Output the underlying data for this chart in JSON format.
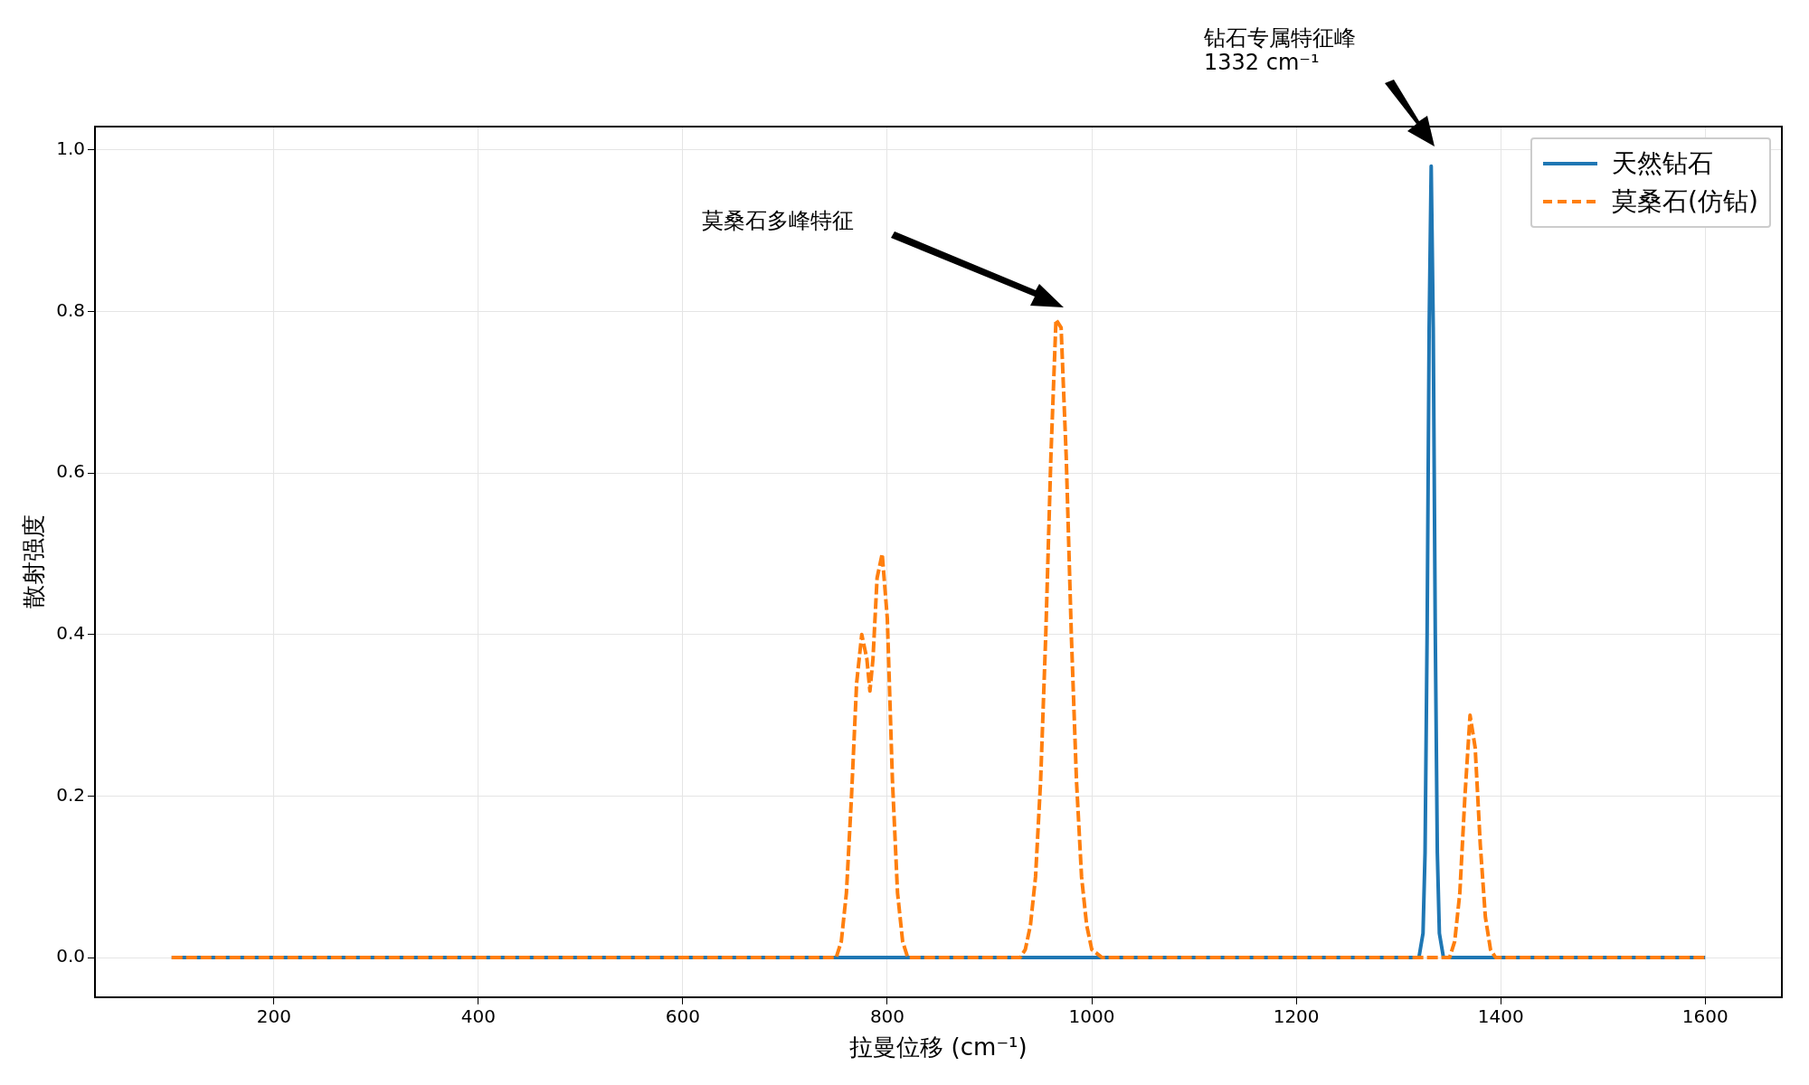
{
  "chart_data": {
    "type": "line",
    "xlabel": "拉曼位移 (cm⁻¹)",
    "ylabel": "散射强度",
    "xlim": [
      25,
      1675
    ],
    "xticks": [
      200,
      400,
      600,
      800,
      1000,
      1200,
      1400,
      1600
    ],
    "ylim": [
      -0.049,
      1.029
    ],
    "yticks": [
      {
        "value": 0,
        "label": "0.0"
      },
      0.2,
      0.4,
      0.6,
      0.8,
      {
        "value": 1,
        "label": "1.0"
      }
    ],
    "grid": true,
    "legend": "top right",
    "series": [
      {
        "name": "天然钻石",
        "color": "#1f77b4",
        "line_style": "solid",
        "x": [
          100,
          1320,
          1324,
          1326,
          1328,
          1330,
          1332,
          1334,
          1336,
          1338,
          1340,
          1344,
          1600
        ],
        "values": [
          0,
          0,
          0.03,
          0.13,
          0.4,
          0.78,
          0.98,
          0.78,
          0.4,
          0.13,
          0.03,
          0,
          0
        ]
      },
      {
        "name": "莫桑石(仿钻)",
        "color": "#ff7f0e",
        "line_style": "dashed",
        "x": [
          100,
          750,
          755,
          760,
          765,
          770,
          775,
          780,
          783,
          786,
          790,
          795,
          800,
          805,
          810,
          815,
          820,
          930,
          935,
          940,
          945,
          950,
          955,
          960,
          965,
          970,
          975,
          980,
          985,
          990,
          995,
          1000,
          1010,
          1350,
          1355,
          1360,
          1365,
          1370,
          1375,
          1380,
          1385,
          1390,
          1395,
          1600
        ],
        "values": [
          0,
          0,
          0.02,
          0.08,
          0.2,
          0.34,
          0.4,
          0.37,
          0.33,
          0.37,
          0.47,
          0.5,
          0.42,
          0.22,
          0.08,
          0.02,
          0,
          0,
          0.01,
          0.04,
          0.1,
          0.22,
          0.4,
          0.62,
          0.79,
          0.78,
          0.62,
          0.4,
          0.22,
          0.1,
          0.04,
          0.01,
          0,
          0,
          0.02,
          0.08,
          0.2,
          0.3,
          0.26,
          0.14,
          0.05,
          0.01,
          0,
          0
        ]
      }
    ],
    "annotations": [
      "钻石专属特征峰\n1332 cm⁻¹",
      "莫桑石多峰特征"
    ]
  }
}
